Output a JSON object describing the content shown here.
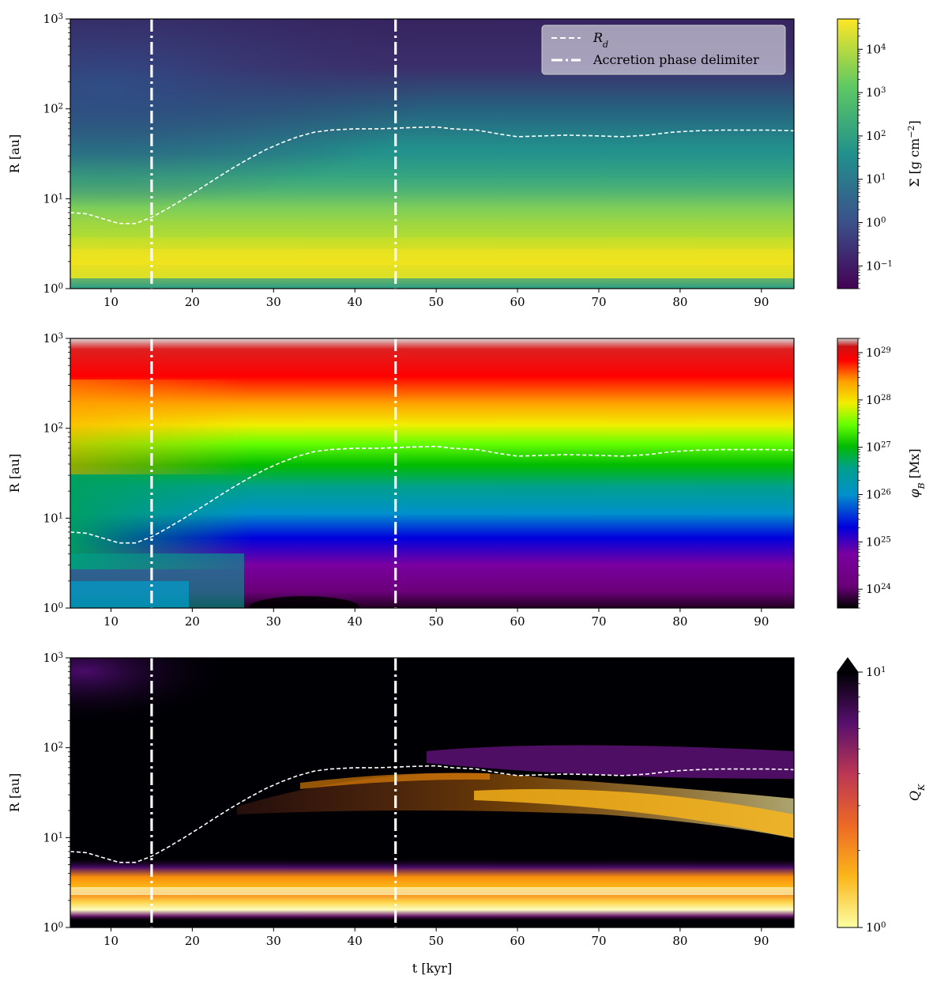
{
  "figure": {
    "xlabel": "t [kyr]",
    "legend": {
      "rd_label": "R",
      "rd_sub": "d",
      "delim_label": "Accretion phase delimiter"
    }
  },
  "chart_data": [
    {
      "type": "heatmap",
      "panel": "surface-density",
      "xlabel": "",
      "ylabel": "R [au]",
      "xlim": [
        5,
        94
      ],
      "ylim": [
        1,
        1000
      ],
      "yscale": "log",
      "x_ticks": [
        "10",
        "20",
        "30",
        "40",
        "50",
        "60",
        "70",
        "80",
        "90"
      ],
      "y_ticks": [
        {
          "base": "10",
          "exp": "0"
        },
        {
          "base": "10",
          "exp": "1"
        },
        {
          "base": "10",
          "exp": "2"
        },
        {
          "base": "10",
          "exp": "3"
        }
      ],
      "colormap": "viridis",
      "colorbar": {
        "label": "Σ [g cm⁻²]",
        "scale": "log",
        "range": [
          0.03,
          50000
        ],
        "ticks": [
          {
            "base": "10",
            "exp": "−1"
          },
          {
            "base": "10",
            "exp": "0"
          },
          {
            "base": "10",
            "exp": "1"
          },
          {
            "base": "10",
            "exp": "2"
          },
          {
            "base": "10",
            "exp": "3"
          },
          {
            "base": "10",
            "exp": "4"
          }
        ]
      },
      "legend_position": "upper-right"
    },
    {
      "type": "heatmap",
      "panel": "magnetic-flux",
      "xlabel": "",
      "ylabel": "R [au]",
      "xlim": [
        5,
        94
      ],
      "ylim": [
        1,
        1000
      ],
      "yscale": "log",
      "x_ticks": [
        "10",
        "20",
        "30",
        "40",
        "50",
        "60",
        "70",
        "80",
        "90"
      ],
      "y_ticks": [
        {
          "base": "10",
          "exp": "0"
        },
        {
          "base": "10",
          "exp": "1"
        },
        {
          "base": "10",
          "exp": "2"
        },
        {
          "base": "10",
          "exp": "3"
        }
      ],
      "colormap": "nipy_spectral",
      "colorbar": {
        "label": "φ_B [Mx]",
        "scale": "log",
        "range": [
          4e+23,
          2e+29
        ],
        "ticks": [
          {
            "base": "10",
            "exp": "24"
          },
          {
            "base": "10",
            "exp": "25"
          },
          {
            "base": "10",
            "exp": "26"
          },
          {
            "base": "10",
            "exp": "27"
          },
          {
            "base": "10",
            "exp": "28"
          },
          {
            "base": "10",
            "exp": "29"
          }
        ]
      }
    },
    {
      "type": "heatmap",
      "panel": "toomre-q",
      "xlabel": "t [kyr]",
      "ylabel": "R [au]",
      "xlim": [
        5,
        94
      ],
      "ylim": [
        1,
        1000
      ],
      "yscale": "log",
      "x_ticks": [
        "10",
        "20",
        "30",
        "40",
        "50",
        "60",
        "70",
        "80",
        "90"
      ],
      "y_ticks": [
        {
          "base": "10",
          "exp": "0"
        },
        {
          "base": "10",
          "exp": "1"
        },
        {
          "base": "10",
          "exp": "2"
        },
        {
          "base": "10",
          "exp": "3"
        }
      ],
      "colormap": "inferno_r",
      "colorbar": {
        "label": "Q_K",
        "scale": "log",
        "range": [
          1,
          10
        ],
        "extend": "max",
        "ticks": [
          {
            "base": "10",
            "exp": "0"
          },
          {
            "base": "10",
            "exp": "1"
          }
        ]
      }
    }
  ],
  "overlays": {
    "disk_radius": {
      "name": "R_d",
      "t": [
        5,
        7,
        9,
        11,
        13,
        15,
        17,
        19,
        21,
        23,
        25,
        27,
        29,
        31,
        33,
        35,
        37,
        40,
        43,
        45,
        47,
        50,
        52,
        55,
        58,
        60,
        63,
        66,
        70,
        73,
        76,
        79,
        82,
        85,
        88,
        91,
        94
      ],
      "R_au": [
        7.0,
        6.8,
        6.0,
        5.3,
        5.3,
        6.2,
        7.8,
        10,
        13,
        17,
        22,
        28,
        35,
        42,
        49,
        55,
        58,
        60,
        60,
        61,
        62,
        63,
        60,
        58,
        52,
        49,
        50,
        51,
        50,
        49,
        51,
        55,
        57,
        58,
        58,
        58,
        57
      ]
    },
    "accretion_phase_delimiters_kyr": [
      15,
      45
    ]
  }
}
